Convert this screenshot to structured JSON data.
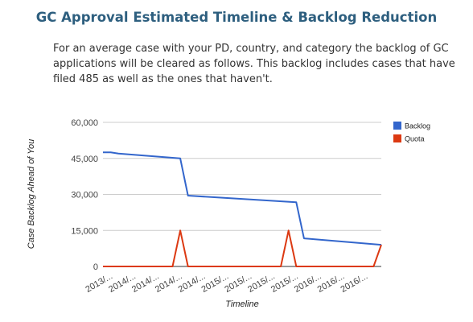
{
  "page": {
    "title": "GC Approval Estimated Timeline & Backlog Reduction",
    "intro": "For an average case with your PD, country, and category the backlog of GC applications will be cleared as follows. This backlog includes cases that have filed 485 as well as the ones that haven't."
  },
  "chart_data": {
    "type": "line",
    "title": "",
    "xlabel": "Timeline",
    "ylabel": "Case Backlog Ahead of You",
    "ylim": [
      0,
      60000
    ],
    "yticks": [
      0,
      15000,
      30000,
      45000,
      60000
    ],
    "ytick_labels": [
      "0",
      "15,000",
      "30,000",
      "45,000",
      "60,000"
    ],
    "x_tick_labels": [
      "2013/...",
      "2014/...",
      "2014/...",
      "2014/...",
      "2014/...",
      "2015/...",
      "2015/...",
      "2015/...",
      "2015/...",
      "2016/...",
      "2016/...",
      "2016/..."
    ],
    "x_count": 37,
    "grid": true,
    "legend_position": "right",
    "series": [
      {
        "name": "Backlog",
        "color": "#3366cc",
        "x": [
          0,
          1,
          2,
          10,
          11,
          25,
          26,
          36
        ],
        "y": [
          47500,
          47500,
          47000,
          45000,
          29500,
          26700,
          11700,
          9000
        ]
      },
      {
        "name": "Quota",
        "color": "#dc3912",
        "x": [
          0,
          9,
          10,
          11,
          23,
          24,
          25,
          35,
          36
        ],
        "y": [
          0,
          0,
          15000,
          0,
          0,
          15000,
          0,
          0,
          9000
        ]
      }
    ]
  }
}
